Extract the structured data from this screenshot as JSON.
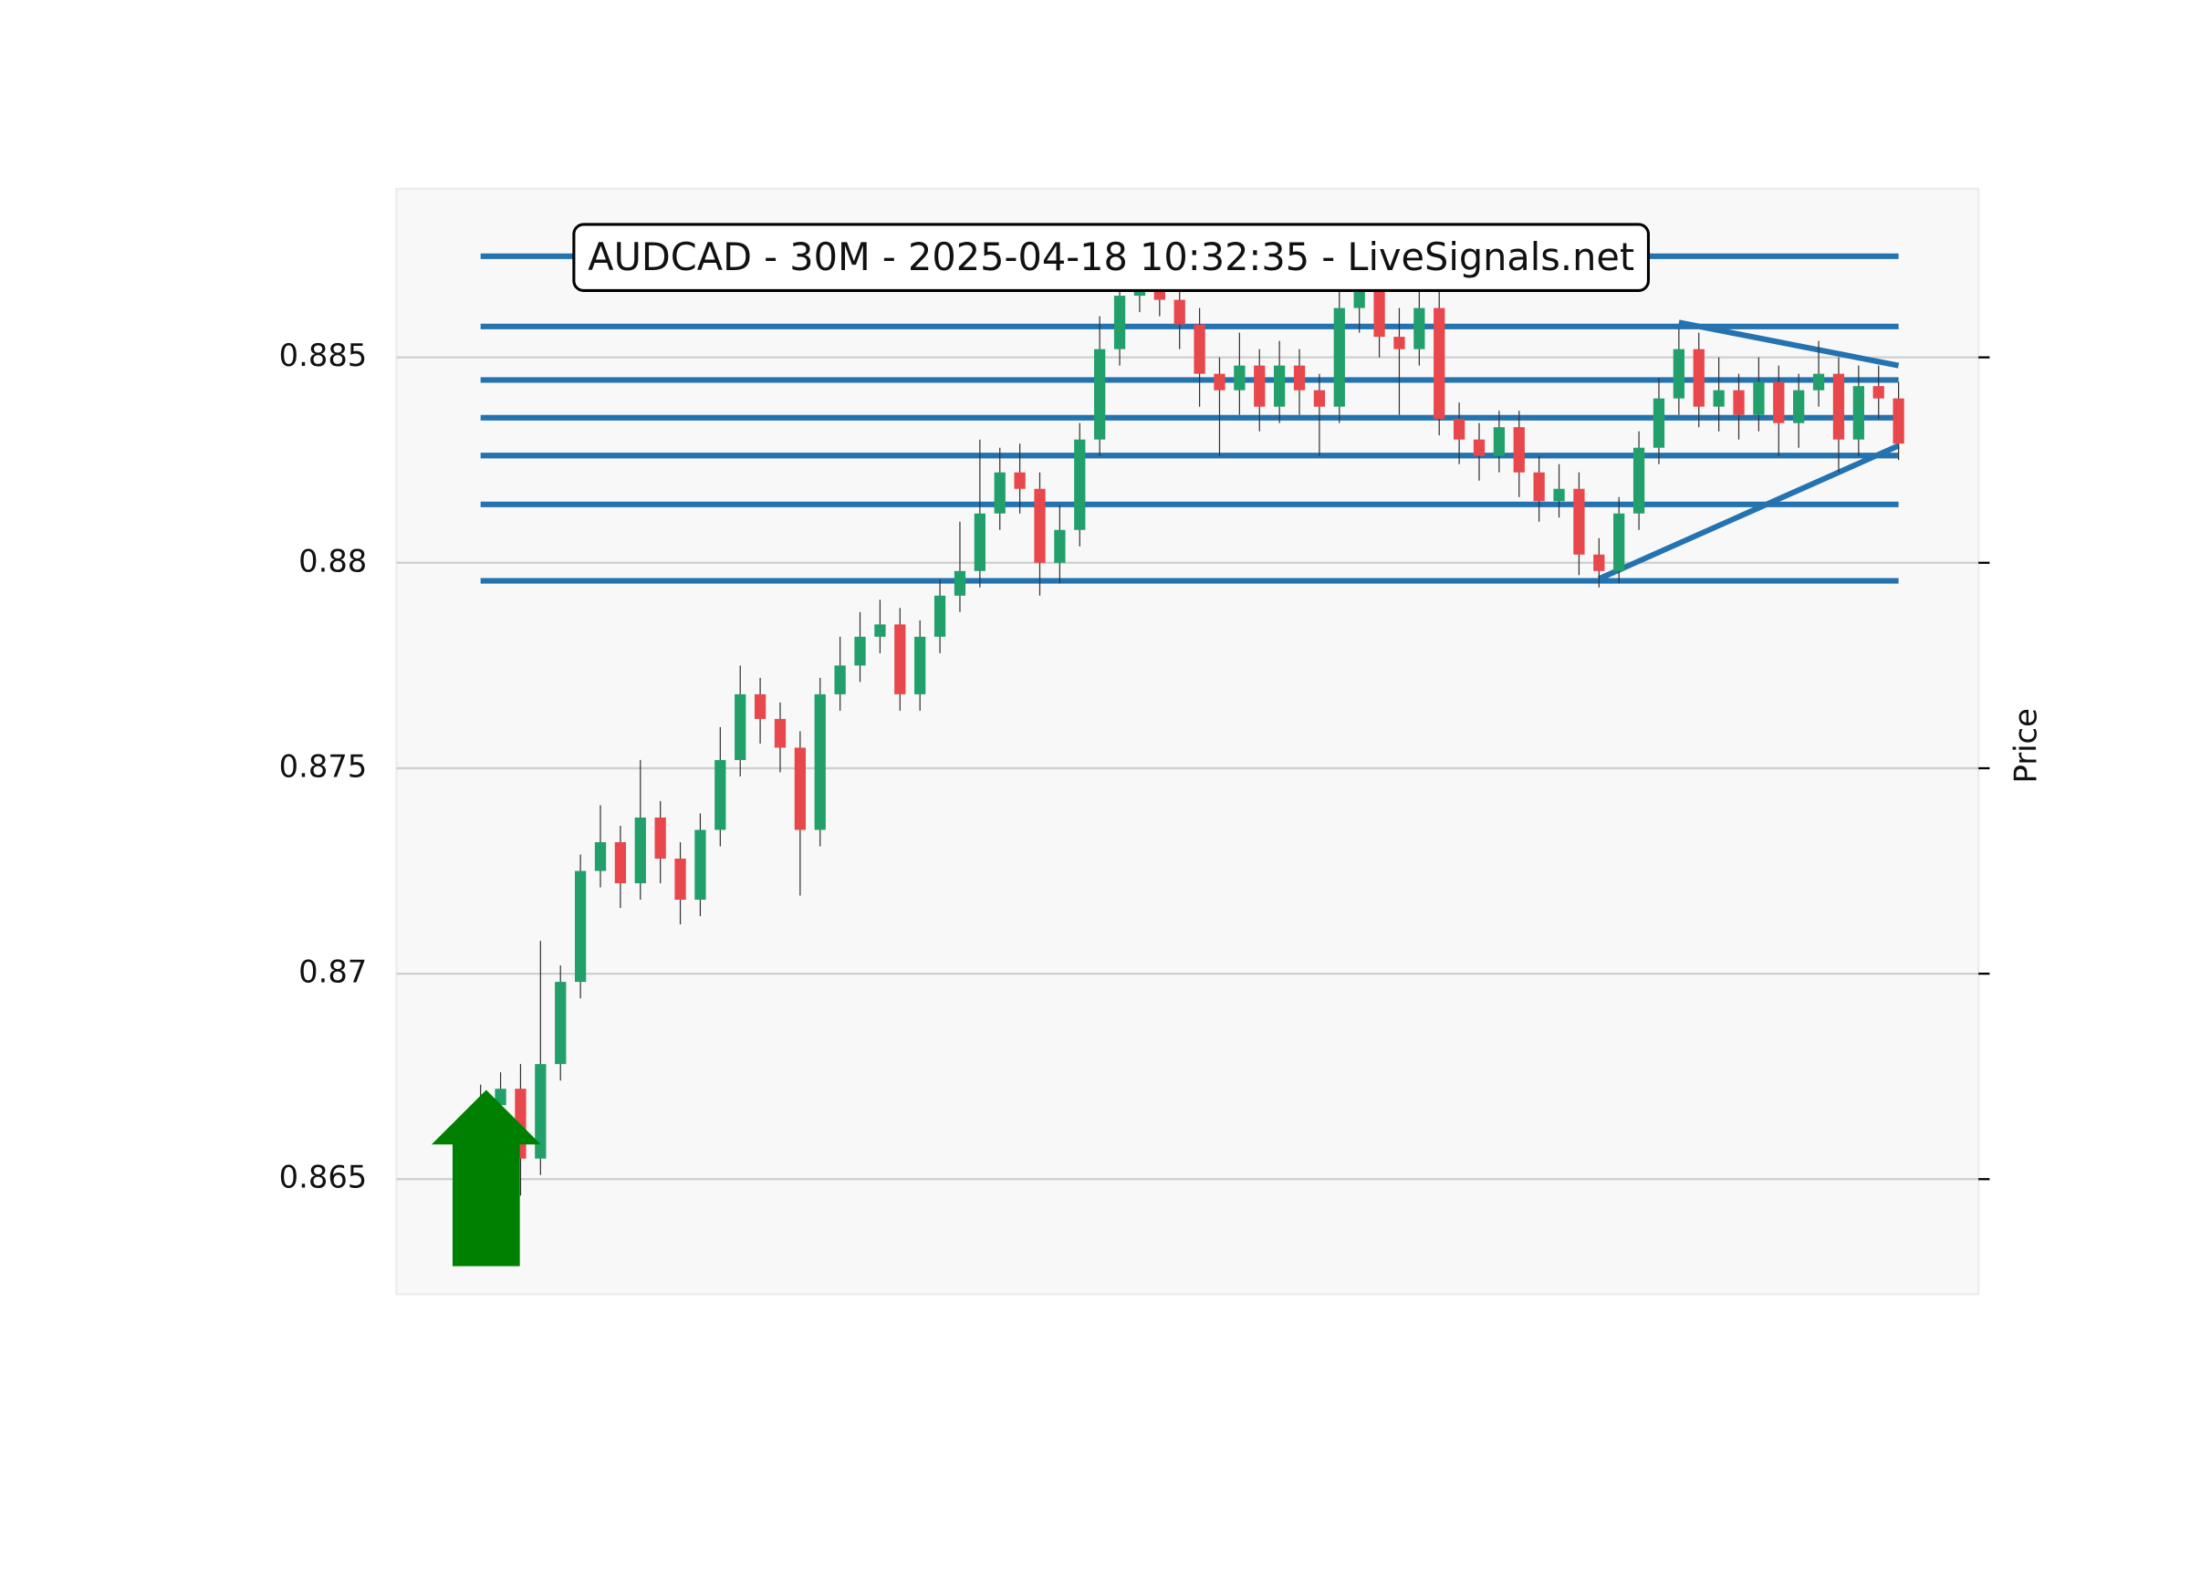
{
  "chart_data": {
    "type": "candlestick",
    "title": "AUDCAD - 30M - 2025-04-18 10:32:35 - LiveSignals.net",
    "y_label": "Price",
    "ylim": [
      0.8622,
      0.8891
    ],
    "yticks": [
      0.865,
      0.87,
      0.875,
      0.88,
      0.885
    ],
    "grid": true,
    "up_color": "#22a06b",
    "down_color": "#e8474b",
    "level_color": "#2473b0",
    "open": [
      0.8665,
      0.8668,
      0.8672,
      0.8655,
      0.8678,
      0.8698,
      0.8725,
      0.8732,
      0.8722,
      0.8738,
      0.8728,
      0.8718,
      0.8735,
      0.8752,
      0.8768,
      0.8762,
      0.8755,
      0.8735,
      0.8768,
      0.8775,
      0.8782,
      0.8785,
      0.8768,
      0.8782,
      0.8792,
      0.8798,
      0.8812,
      0.8822,
      0.8818,
      0.88,
      0.8808,
      0.883,
      0.8852,
      0.8865,
      0.8868,
      0.8864,
      0.8858,
      0.8846,
      0.8842,
      0.8848,
      0.8838,
      0.8848,
      0.8842,
      0.8838,
      0.8862,
      0.8866,
      0.8855,
      0.8852,
      0.8862,
      0.8835,
      0.883,
      0.8826,
      0.8833,
      0.8822,
      0.8815,
      0.8818,
      0.8802,
      0.8798,
      0.8812,
      0.8828,
      0.884,
      0.8852,
      0.8838,
      0.8842,
      0.8836,
      0.8844,
      0.8834,
      0.8842,
      0.8846,
      0.883,
      0.8843,
      0.884
    ],
    "high": [
      0.8673,
      0.8676,
      0.8678,
      0.8708,
      0.8702,
      0.8729,
      0.8741,
      0.8736,
      0.8752,
      0.8742,
      0.8732,
      0.8739,
      0.876,
      0.8775,
      0.8772,
      0.8766,
      0.8759,
      0.8772,
      0.8782,
      0.8788,
      0.8791,
      0.8789,
      0.8786,
      0.8796,
      0.881,
      0.883,
      0.8828,
      0.8829,
      0.8822,
      0.8814,
      0.8834,
      0.886,
      0.8869,
      0.8873,
      0.8872,
      0.8868,
      0.8862,
      0.885,
      0.8856,
      0.8852,
      0.8854,
      0.8852,
      0.8846,
      0.8866,
      0.8872,
      0.887,
      0.8862,
      0.8868,
      0.8866,
      0.8839,
      0.8834,
      0.8837,
      0.8837,
      0.8826,
      0.8824,
      0.8822,
      0.8806,
      0.8816,
      0.8832,
      0.8845,
      0.8857,
      0.8856,
      0.885,
      0.8846,
      0.885,
      0.8848,
      0.8846,
      0.8854,
      0.885,
      0.8848,
      0.8848,
      0.8844
    ],
    "low": [
      0.866,
      0.8664,
      0.8646,
      0.8651,
      0.8674,
      0.8694,
      0.8721,
      0.8716,
      0.8718,
      0.8722,
      0.8712,
      0.8714,
      0.8731,
      0.8748,
      0.8756,
      0.8749,
      0.8719,
      0.8731,
      0.8764,
      0.8771,
      0.8778,
      0.8764,
      0.8764,
      0.8778,
      0.8788,
      0.8794,
      0.8808,
      0.8812,
      0.8792,
      0.8795,
      0.8804,
      0.8826,
      0.8848,
      0.8861,
      0.886,
      0.8852,
      0.8838,
      0.8826,
      0.8836,
      0.8832,
      0.8834,
      0.8836,
      0.8826,
      0.8834,
      0.8856,
      0.885,
      0.8836,
      0.8848,
      0.8831,
      0.8824,
      0.882,
      0.8822,
      0.8816,
      0.881,
      0.8811,
      0.8797,
      0.8794,
      0.8795,
      0.8808,
      0.8824,
      0.8836,
      0.8833,
      0.8832,
      0.883,
      0.8832,
      0.8826,
      0.8828,
      0.8838,
      0.8822,
      0.8826,
      0.8835,
      0.8825
    ],
    "close": [
      0.8668,
      0.8672,
      0.8655,
      0.8678,
      0.8698,
      0.8725,
      0.8732,
      0.8722,
      0.8738,
      0.8728,
      0.8718,
      0.8735,
      0.8752,
      0.8768,
      0.8762,
      0.8755,
      0.8735,
      0.8768,
      0.8775,
      0.8782,
      0.8785,
      0.8768,
      0.8782,
      0.8792,
      0.8798,
      0.8812,
      0.8822,
      0.8818,
      0.88,
      0.8808,
      0.883,
      0.8852,
      0.8865,
      0.8868,
      0.8864,
      0.8858,
      0.8846,
      0.8842,
      0.8848,
      0.8838,
      0.8848,
      0.8842,
      0.8838,
      0.8862,
      0.8866,
      0.8855,
      0.8852,
      0.8862,
      0.8835,
      0.883,
      0.8826,
      0.8833,
      0.8822,
      0.8815,
      0.8818,
      0.8802,
      0.8798,
      0.8812,
      0.8828,
      0.884,
      0.8852,
      0.8838,
      0.8842,
      0.8836,
      0.8844,
      0.8834,
      0.8842,
      0.8846,
      0.883,
      0.8843,
      0.884,
      0.8829
    ],
    "levels": [
      0.88746,
      0.88575,
      0.88445,
      0.88353,
      0.88261,
      0.88142,
      0.87956
    ],
    "trendlines": [
      {
        "start": [
          60,
          0.88585
        ],
        "end": [
          71,
          0.8848
        ]
      },
      {
        "start": [
          56,
          0.87961
        ],
        "end": [
          71,
          0.88285
        ]
      }
    ]
  }
}
